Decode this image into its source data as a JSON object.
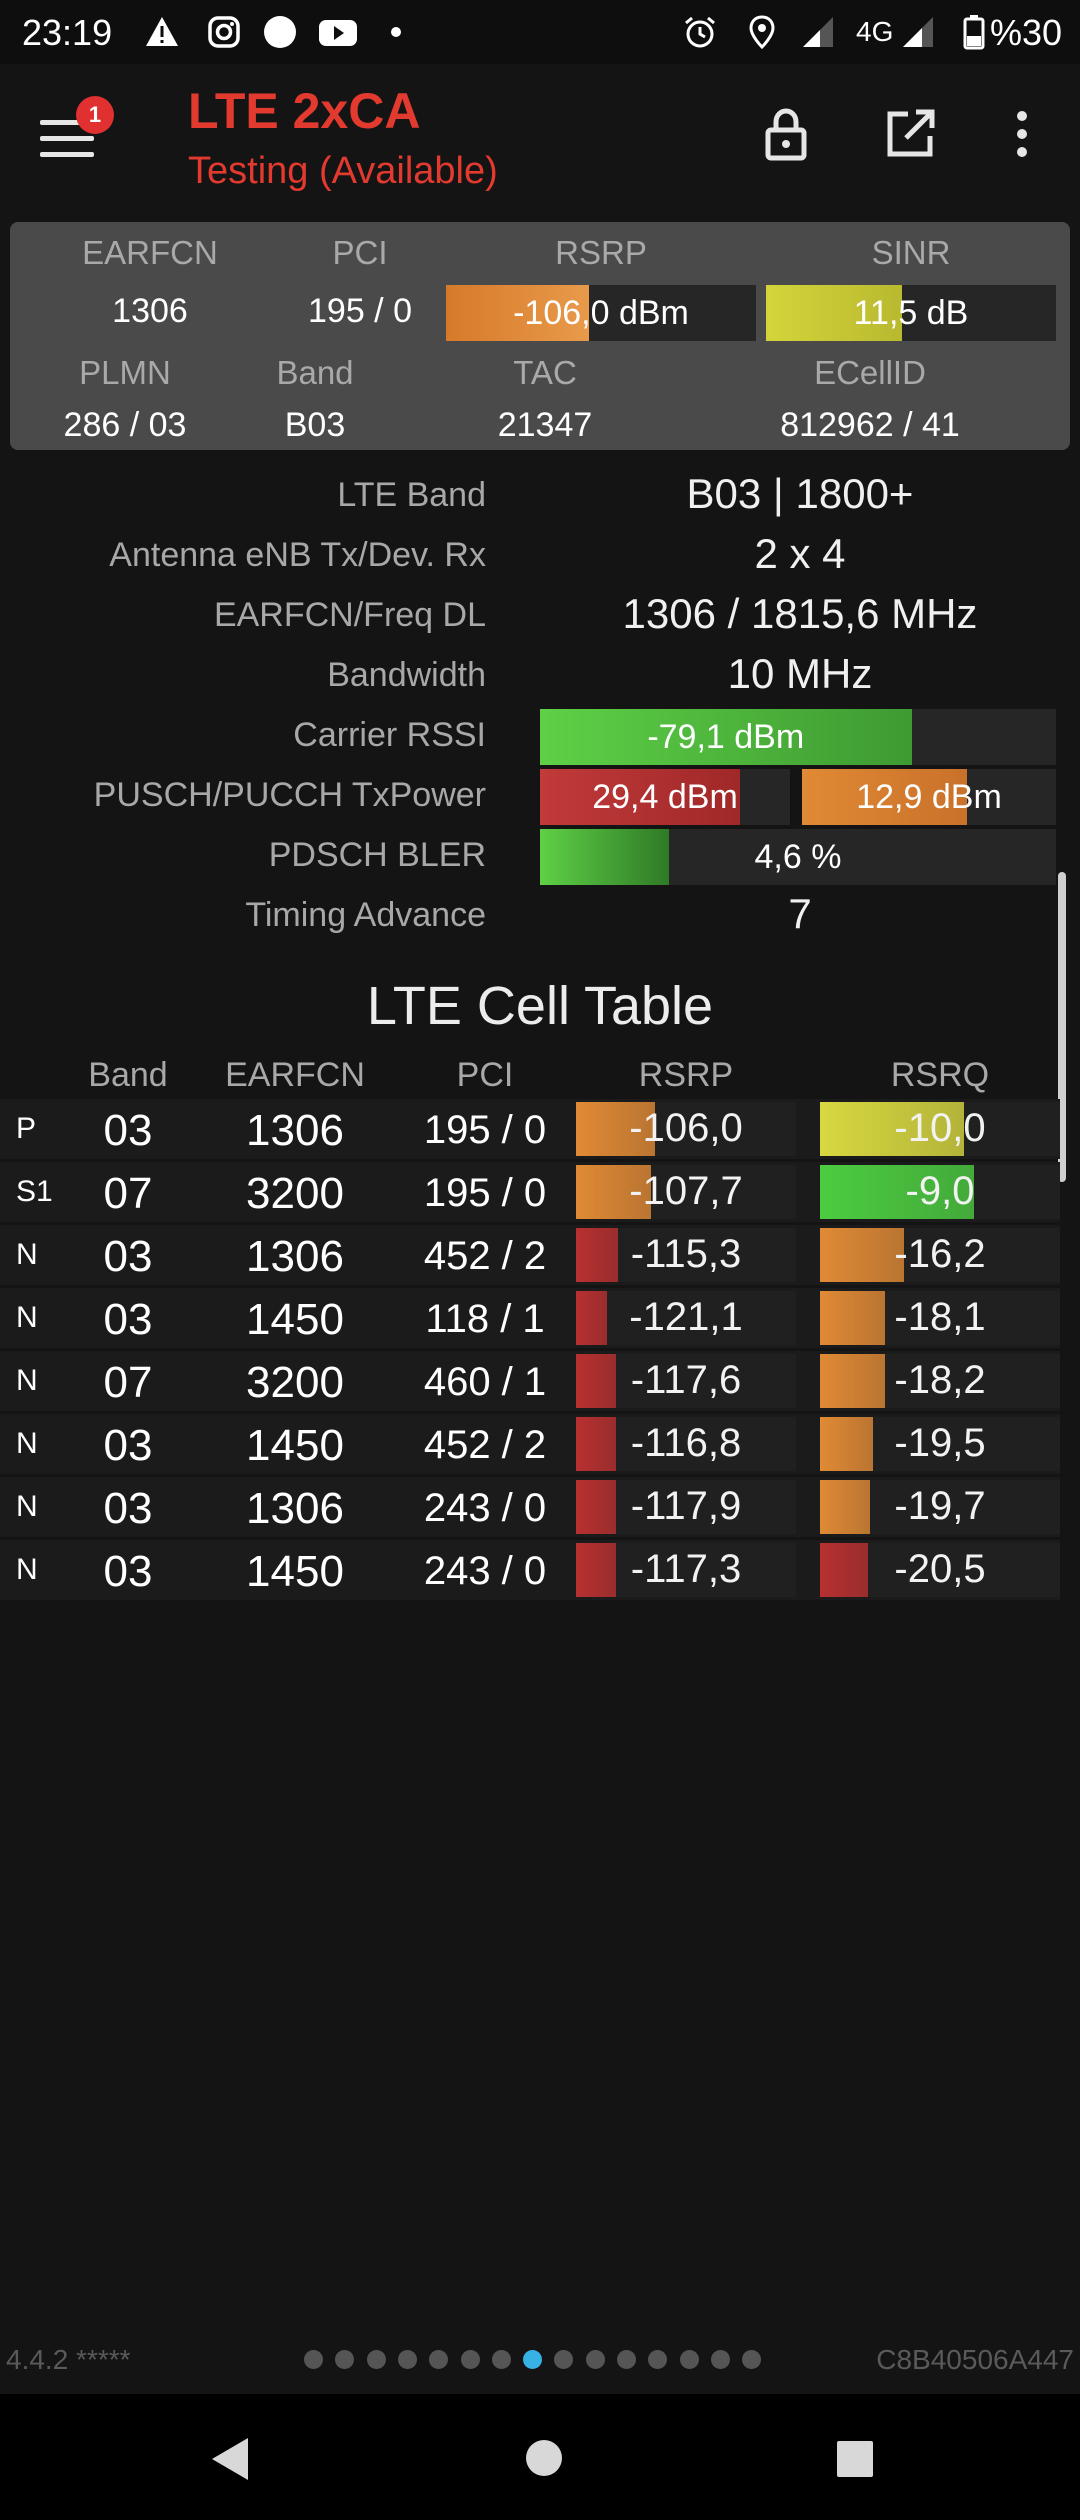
{
  "status_bar": {
    "time": "23:19",
    "network": "4G",
    "battery": "%30",
    "icons": [
      "warning-icon",
      "instagram-icon",
      "circle-icon",
      "youtube-icon",
      "dot-icon",
      "alarm-icon",
      "location-icon",
      "signal-icon",
      "battery-icon"
    ]
  },
  "app_bar": {
    "title": "LTE 2xCA",
    "subtitle": "Testing (Available)",
    "notification_count": "1"
  },
  "summary": {
    "headers1": [
      "EARFCN",
      "PCI",
      "RSRP",
      "SINR"
    ],
    "earfcn": "1306",
    "pci": "195 / 0",
    "rsrp": "-106,0 dBm",
    "rsrp_level": 0.46,
    "sinr": "11,5 dB",
    "sinr_level": 0.47,
    "headers2": [
      "PLMN",
      "Band",
      "TAC",
      "ECellID"
    ],
    "plmn": "286 / 03",
    "band": "B03",
    "tac": "21347",
    "ecellid": "812962 / 41"
  },
  "details": {
    "lte_band_label": "LTE Band",
    "lte_band": "B03 | 1800+",
    "antenna_label": "Antenna eNB Tx/Dev. Rx",
    "antenna": "2 x 4",
    "earfcn_freq_label": "EARFCN/Freq DL",
    "earfcn_freq": "1306 / 1815,6 MHz",
    "bandwidth_label": "Bandwidth",
    "bandwidth": "10 MHz",
    "rssi_label": "Carrier RSSI",
    "rssi": "-79,1 dBm",
    "rssi_level": 0.72,
    "txpower_label": "PUSCH/PUCCH TxPower",
    "pusch": "29,4 dBm",
    "pusch_level": 0.8,
    "pucch": "12,9 dBm",
    "pucch_level": 0.65,
    "bler_label": "PDSCH BLER",
    "bler": "4,6 %",
    "bler_level": 0.25,
    "ta_label": "Timing Advance",
    "ta": "7"
  },
  "cell_table": {
    "title": "LTE Cell Table",
    "headers": [
      "Band",
      "EARFCN",
      "PCI",
      "RSRP",
      "RSRQ"
    ],
    "rows": [
      {
        "type": "P",
        "band": "03",
        "earfcn": "1306",
        "pci": "195 / 0",
        "rsrp": "-106,0",
        "rsrp_level": 0.36,
        "rsrp_color": "#e08a35",
        "rsrq": "-10,0",
        "rsrq_level": 0.6,
        "rsrq_color": "#d8d840"
      },
      {
        "type": "S1",
        "band": "07",
        "earfcn": "3200",
        "pci": "195 / 0",
        "rsrp": "-107,7",
        "rsrp_level": 0.34,
        "rsrp_color": "#e08a35",
        "rsrq": "-9,0",
        "rsrq_level": 0.64,
        "rsrq_color": "#4ccc40"
      },
      {
        "type": "N",
        "band": "03",
        "earfcn": "1306",
        "pci": "452 / 2",
        "rsrp": "-115,3",
        "rsrp_level": 0.19,
        "rsrp_color": "#b83030",
        "rsrq": "-16,2",
        "rsrq_level": 0.35,
        "rsrq_color": "#e08a35"
      },
      {
        "type": "N",
        "band": "03",
        "earfcn": "1450",
        "pci": "118 / 1",
        "rsrp": "-121,1",
        "rsrp_level": 0.14,
        "rsrp_color": "#b83030",
        "rsrq": "-18,1",
        "rsrq_level": 0.27,
        "rsrq_color": "#e08a35"
      },
      {
        "type": "N",
        "band": "07",
        "earfcn": "3200",
        "pci": "460 / 1",
        "rsrp": "-117,6",
        "rsrp_level": 0.18,
        "rsrp_color": "#b83030",
        "rsrq": "-18,2",
        "rsrq_level": 0.27,
        "rsrq_color": "#e08a35"
      },
      {
        "type": "N",
        "band": "03",
        "earfcn": "1450",
        "pci": "452 / 2",
        "rsrp": "-116,8",
        "rsrp_level": 0.18,
        "rsrp_color": "#b83030",
        "rsrq": "-19,5",
        "rsrq_level": 0.22,
        "rsrq_color": "#e08a35"
      },
      {
        "type": "N",
        "band": "03",
        "earfcn": "1306",
        "pci": "243 / 0",
        "rsrp": "-117,9",
        "rsrp_level": 0.18,
        "rsrp_color": "#b83030",
        "rsrq": "-19,7",
        "rsrq_level": 0.21,
        "rsrq_color": "#e08a35"
      },
      {
        "type": "N",
        "band": "03",
        "earfcn": "1450",
        "pci": "243 / 0",
        "rsrp": "-117,3",
        "rsrp_level": 0.18,
        "rsrp_color": "#b83030",
        "rsrq": "-20,5",
        "rsrq_level": 0.2,
        "rsrq_color": "#b83030"
      }
    ]
  },
  "footer": {
    "version": "4.4.2 *****",
    "device_id": "C8B40506A447",
    "page_count": 15,
    "active_page": 7
  }
}
